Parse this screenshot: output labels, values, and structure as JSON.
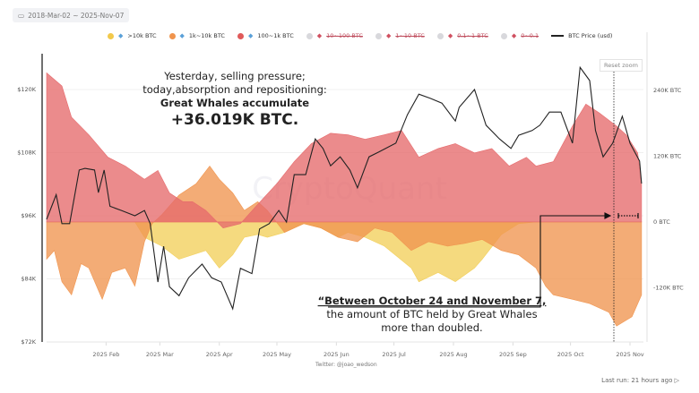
{
  "date_range": "2018-Mar-02 ~ 2025-Nov-07",
  "legend": [
    {
      "label": ">10k BTC",
      "color": "#f2c94c",
      "icon": "whale-icon",
      "active": true
    },
    {
      "label": "1k~10k BTC",
      "color": "#f0944d",
      "icon": "shark-icon",
      "active": true
    },
    {
      "label": "100~1k BTC",
      "color": "#e05a5a",
      "icon": "dolphin-icon",
      "active": true
    },
    {
      "label": "10~100 BTC",
      "color": "#d8d8dc",
      "icon": "fish-icon",
      "active": false
    },
    {
      "label": "1~10 BTC",
      "color": "#d8d8dc",
      "icon": "crab-icon",
      "active": false
    },
    {
      "label": "0.1~1 BTC",
      "color": "#d8d8dc",
      "icon": "octopus-icon",
      "active": false
    },
    {
      "label": "0~0.1",
      "color": "#d8d8dc",
      "icon": "shrimp-icon",
      "active": false
    },
    {
      "label": "BTC Price (usd)",
      "color": "#222222",
      "icon": "line-icon",
      "active": true
    }
  ],
  "reset_zoom": "Reset zoom",
  "watermark": "CryptoQuant",
  "credit": "Twitter: @joao_wedson",
  "last_run": "Last run: 21 hours ago",
  "annotations": {
    "headline": [
      "Yesterday, selling pressure;",
      "today,absorption and repositioning:"
    ],
    "headline_bold": "Great Whales accumulate",
    "headline_big": "+36.019K BTC.",
    "quote_bold": "“Between October 24 and November 7,",
    "quote_lines": [
      "the amount of BTC held by Great Whales",
      "more than doubled."
    ]
  },
  "chart_data": {
    "type": "area",
    "x_ticks": [
      "2025 Feb",
      "2025 Mar",
      "2025 Apr",
      "2025 May",
      "2025 Jun",
      "2025 Jul",
      "2025 Aug",
      "2025 Sep",
      "2025 Oct",
      "2025 Nov"
    ],
    "y_left": {
      "ticks": [
        "$72K",
        "$84K",
        "$96K",
        "$108K",
        "$120K"
      ],
      "ylim": [
        72000,
        126800
      ]
    },
    "y_right": {
      "ticks": [
        "-120K BTC",
        "0 BTC",
        "120K BTC",
        "240K BTC"
      ],
      "ylim": [
        -219000,
        307000
      ]
    },
    "grid": true,
    "legend_position": "top",
    "series": [
      {
        "name": ">10k BTC",
        "axis": "right",
        "color": "#f2cf5b",
        "points": [
          [
            "2025-01-01",
            0
          ],
          [
            "2025-02-16",
            0
          ],
          [
            "2025-02-21",
            -28000
          ],
          [
            "2025-03-02",
            -44000
          ],
          [
            "2025-03-11",
            -68000
          ],
          [
            "2025-03-25",
            -52000
          ],
          [
            "2025-04-01",
            -84000
          ],
          [
            "2025-04-08",
            -60000
          ],
          [
            "2025-04-14",
            -28000
          ],
          [
            "2025-04-21",
            -23000
          ],
          [
            "2025-04-26",
            -28000
          ],
          [
            "2025-05-05",
            -19000
          ],
          [
            "2025-05-15",
            -3000
          ],
          [
            "2025-05-24",
            -11000
          ],
          [
            "2025-06-02",
            -28000
          ],
          [
            "2025-06-07",
            -19000
          ],
          [
            "2025-06-16",
            -28000
          ],
          [
            "2025-06-26",
            -44000
          ],
          [
            "2025-07-10",
            -84000
          ],
          [
            "2025-07-14",
            -109000
          ],
          [
            "2025-07-24",
            -92000
          ],
          [
            "2025-08-02",
            -109000
          ],
          [
            "2025-08-12",
            -84000
          ],
          [
            "2025-08-16",
            -68000
          ],
          [
            "2025-08-26",
            -23000
          ],
          [
            "2025-09-04",
            -3000
          ],
          [
            "2025-09-13",
            0
          ],
          [
            "2025-11-07",
            0
          ]
        ]
      },
      {
        "name": "1k~10k BTC",
        "axis": "right",
        "color": "#f0954f",
        "points": [
          [
            "2025-01-01",
            -68000
          ],
          [
            "2025-01-05",
            -52000
          ],
          [
            "2025-01-09",
            -109000
          ],
          [
            "2025-01-14",
            -133000
          ],
          [
            "2025-01-19",
            -76000
          ],
          [
            "2025-01-23",
            -84000
          ],
          [
            "2025-01-30",
            -141000
          ],
          [
            "2025-02-04",
            -92000
          ],
          [
            "2025-02-11",
            -84000
          ],
          [
            "2025-02-16",
            -117000
          ],
          [
            "2025-02-21",
            -36000
          ],
          [
            "2025-02-25",
            -3000
          ],
          [
            "2025-03-02",
            13000
          ],
          [
            "2025-03-11",
            49000
          ],
          [
            "2025-03-20",
            70000
          ],
          [
            "2025-03-27",
            102000
          ],
          [
            "2025-04-01",
            78000
          ],
          [
            "2025-04-08",
            53000
          ],
          [
            "2025-04-14",
            21000
          ],
          [
            "2025-04-21",
            37000
          ],
          [
            "2025-04-26",
            21000
          ],
          [
            "2025-05-05",
            -19000
          ],
          [
            "2025-05-15",
            -3000
          ],
          [
            "2025-05-24",
            -11000
          ],
          [
            "2025-06-02",
            -28000
          ],
          [
            "2025-06-12",
            -36000
          ],
          [
            "2025-06-21",
            -11000
          ],
          [
            "2025-06-30",
            -19000
          ],
          [
            "2025-07-10",
            -52000
          ],
          [
            "2025-07-19",
            -36000
          ],
          [
            "2025-07-29",
            -44000
          ],
          [
            "2025-08-07",
            -39000
          ],
          [
            "2025-08-16",
            -32000
          ],
          [
            "2025-08-26",
            -52000
          ],
          [
            "2025-09-04",
            -60000
          ],
          [
            "2025-09-13",
            -84000
          ],
          [
            "2025-09-18",
            -117000
          ],
          [
            "2025-09-22",
            -133000
          ],
          [
            "2025-10-02",
            -141000
          ],
          [
            "2025-10-11",
            -149000
          ],
          [
            "2025-10-21",
            -165000
          ],
          [
            "2025-10-25",
            -190000
          ],
          [
            "2025-11-02",
            -173000
          ],
          [
            "2025-11-07",
            -133000
          ]
        ]
      },
      {
        "name": "100~1k BTC",
        "axis": "right",
        "color": "#e66a6c",
        "points": [
          [
            "2025-01-01",
            272000
          ],
          [
            "2025-01-09",
            248000
          ],
          [
            "2025-01-14",
            191000
          ],
          [
            "2025-01-23",
            159000
          ],
          [
            "2025-02-02",
            118000
          ],
          [
            "2025-02-11",
            102000
          ],
          [
            "2025-02-21",
            78000
          ],
          [
            "2025-02-28",
            94000
          ],
          [
            "2025-03-06",
            53000
          ],
          [
            "2025-03-13",
            37000
          ],
          [
            "2025-03-18",
            37000
          ],
          [
            "2025-03-25",
            21000
          ],
          [
            "2025-04-03",
            -11000
          ],
          [
            "2025-04-12",
            -3000
          ],
          [
            "2025-04-21",
            32000
          ],
          [
            "2025-05-01",
            70000
          ],
          [
            "2025-05-10",
            110000
          ],
          [
            "2025-05-19",
            143000
          ],
          [
            "2025-05-29",
            162000
          ],
          [
            "2025-06-07",
            159000
          ],
          [
            "2025-06-16",
            151000
          ],
          [
            "2025-06-26",
            159000
          ],
          [
            "2025-07-05",
            167000
          ],
          [
            "2025-07-14",
            118000
          ],
          [
            "2025-07-24",
            134000
          ],
          [
            "2025-08-02",
            143000
          ],
          [
            "2025-08-12",
            126000
          ],
          [
            "2025-08-21",
            134000
          ],
          [
            "2025-08-30",
            102000
          ],
          [
            "2025-09-08",
            118000
          ],
          [
            "2025-09-13",
            102000
          ],
          [
            "2025-09-22",
            110000
          ],
          [
            "2025-10-02",
            175000
          ],
          [
            "2025-10-09",
            215000
          ],
          [
            "2025-10-16",
            199000
          ],
          [
            "2025-10-25",
            175000
          ],
          [
            "2025-10-30",
            159000
          ],
          [
            "2025-11-05",
            126000
          ],
          [
            "2025-11-07",
            70000
          ]
        ]
      },
      {
        "name": "BTC Price (usd)",
        "axis": "left",
        "type": "line",
        "color": "#222222",
        "points": [
          [
            "2025-01-01",
            95300
          ],
          [
            "2025-01-06",
            100000
          ],
          [
            "2025-01-09",
            94500
          ],
          [
            "2025-01-13",
            94500
          ],
          [
            "2025-01-18",
            104700
          ],
          [
            "2025-01-21",
            105000
          ],
          [
            "2025-01-26",
            104700
          ],
          [
            "2025-01-28",
            100400
          ],
          [
            "2025-01-31",
            104700
          ],
          [
            "2025-02-03",
            97800
          ],
          [
            "2025-02-09",
            97000
          ],
          [
            "2025-02-16",
            96000
          ],
          [
            "2025-02-21",
            97000
          ],
          [
            "2025-02-24",
            94500
          ],
          [
            "2025-02-28",
            83400
          ],
          [
            "2025-03-03",
            90200
          ],
          [
            "2025-03-06",
            82500
          ],
          [
            "2025-03-11",
            80800
          ],
          [
            "2025-03-16",
            84200
          ],
          [
            "2025-03-23",
            86800
          ],
          [
            "2025-03-28",
            84200
          ],
          [
            "2025-04-02",
            83400
          ],
          [
            "2025-04-08",
            78300
          ],
          [
            "2025-04-12",
            86000
          ],
          [
            "2025-04-18",
            85000
          ],
          [
            "2025-04-22",
            93500
          ],
          [
            "2025-04-27",
            94500
          ],
          [
            "2025-05-02",
            97000
          ],
          [
            "2025-05-06",
            94800
          ],
          [
            "2025-05-10",
            103800
          ],
          [
            "2025-05-16",
            103800
          ],
          [
            "2025-05-21",
            110600
          ],
          [
            "2025-05-25",
            108800
          ],
          [
            "2025-05-29",
            105500
          ],
          [
            "2025-06-03",
            107200
          ],
          [
            "2025-06-08",
            104700
          ],
          [
            "2025-06-12",
            101300
          ],
          [
            "2025-06-18",
            107200
          ],
          [
            "2025-06-23",
            108100
          ],
          [
            "2025-07-02",
            109800
          ],
          [
            "2025-07-08",
            115200
          ],
          [
            "2025-07-14",
            119100
          ],
          [
            "2025-07-20",
            118300
          ],
          [
            "2025-07-26",
            117400
          ],
          [
            "2025-08-02",
            114000
          ],
          [
            "2025-08-04",
            116600
          ],
          [
            "2025-08-12",
            120000
          ],
          [
            "2025-08-18",
            113200
          ],
          [
            "2025-08-25",
            110600
          ],
          [
            "2025-08-31",
            108800
          ],
          [
            "2025-09-04",
            111300
          ],
          [
            "2025-09-11",
            112200
          ],
          [
            "2025-09-15",
            113200
          ],
          [
            "2025-09-20",
            115700
          ],
          [
            "2025-09-26",
            115700
          ],
          [
            "2025-10-02",
            109800
          ],
          [
            "2025-10-06",
            124200
          ],
          [
            "2025-10-11",
            121700
          ],
          [
            "2025-10-14",
            112200
          ],
          [
            "2025-10-18",
            107200
          ],
          [
            "2025-10-23",
            109800
          ],
          [
            "2025-10-28",
            114900
          ],
          [
            "2025-11-01",
            109800
          ],
          [
            "2025-11-06",
            106400
          ],
          [
            "2025-11-07",
            102100
          ]
        ]
      }
    ]
  }
}
